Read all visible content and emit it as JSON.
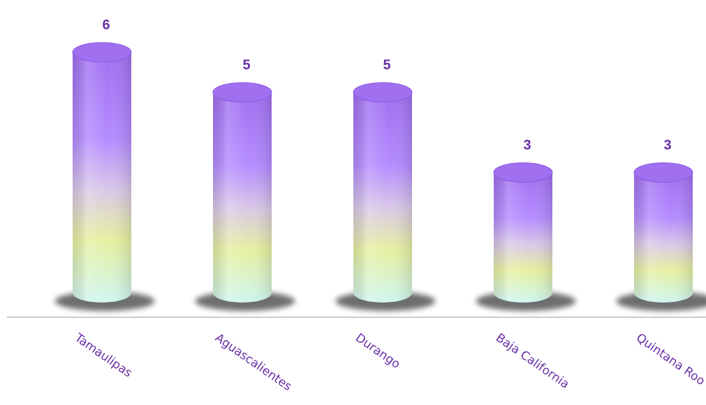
{
  "chart_data": {
    "type": "bar",
    "categories": [
      "Tamaulipas",
      "Aguascalientes",
      "Durango",
      "Baja California",
      "Quintana Roo"
    ],
    "values": [
      6,
      5,
      5,
      3,
      3
    ],
    "ylim": [
      0,
      6
    ],
    "grid": false,
    "data_labels": true,
    "colors": {
      "top": "#a070f0",
      "upper": "#b58cff",
      "middle": "#d9c8e8",
      "lower": "#e6f0a0",
      "bottom": "#cff6f0",
      "label": "#6a2fa8",
      "baseline": "#cccccc",
      "shadow": "#555555"
    }
  }
}
